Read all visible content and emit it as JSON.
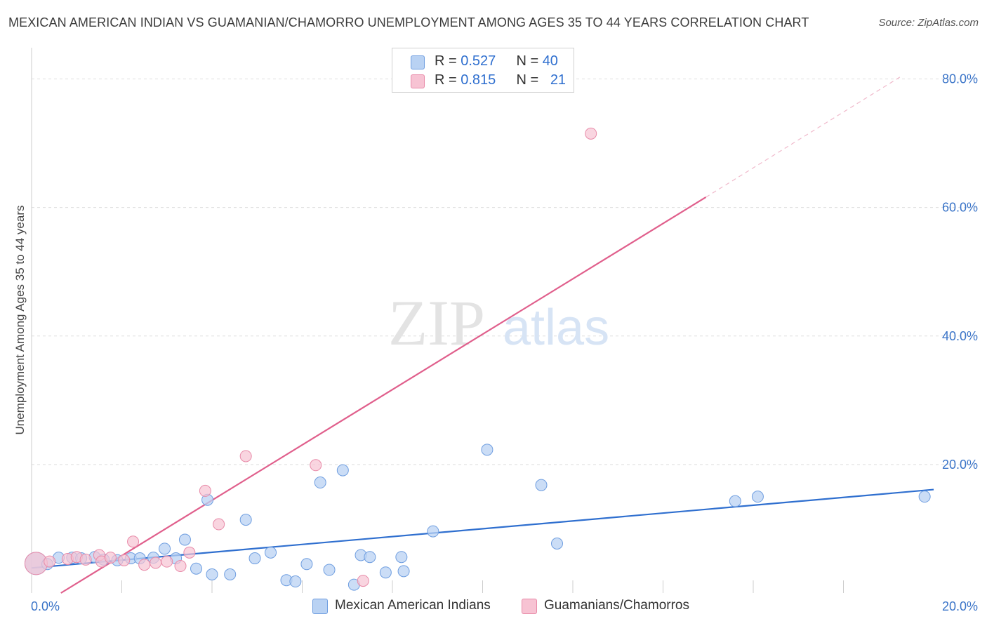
{
  "title": "MEXICAN AMERICAN INDIAN VS GUAMANIAN/CHAMORRO UNEMPLOYMENT AMONG AGES 35 TO 44 YEARS CORRELATION CHART",
  "source": "Source: ZipAtlas.com",
  "watermark": {
    "zip": "ZIP",
    "atlas": "atlas"
  },
  "legend": {
    "series1": {
      "r_label": "R = ",
      "r_value": "0.527",
      "n_label": "N = ",
      "n_value": "40"
    },
    "series2": {
      "r_label": "R = ",
      "r_value": "0.815",
      "n_label": "N = ",
      "n_value": "21"
    }
  },
  "bottom_legend": {
    "series1": "Mexican American Indians",
    "series2": "Guamanians/Chamorros"
  },
  "colors": {
    "blue_fill": "#b9d2f3",
    "blue_stroke": "#6f9ee0",
    "blue_line": "#2f6fcf",
    "pink_fill": "#f7c3d3",
    "pink_stroke": "#e88aa8",
    "pink_line": "#e05f8c",
    "grid": "#dddddd",
    "tick_text": "#3a74c8"
  },
  "chart_data": {
    "type": "scatter",
    "title": "MEXICAN AMERICAN INDIAN VS GUAMANIAN/CHAMORRO UNEMPLOYMENT AMONG AGES 35 TO 44 YEARS CORRELATION CHART",
    "xlabel": "",
    "ylabel": "Unemployment Among Ages 35 to 44 years",
    "xlim": [
      0,
      20
    ],
    "ylim": [
      0,
      80
    ],
    "x_tick_labels": [
      "0.0%",
      "20.0%"
    ],
    "y_ticks": [
      20,
      40,
      60,
      80
    ],
    "y_tick_labels": [
      "20.0%",
      "40.0%",
      "60.0%",
      "80.0%"
    ],
    "series": [
      {
        "name": "Mexican American Indians",
        "R": 0.527,
        "N": 40,
        "trend": {
          "x": [
            0,
            20
          ],
          "y": [
            3.9,
            16.1
          ]
        },
        "points": [
          {
            "x": 0.1,
            "y": 4.6,
            "big": true
          },
          {
            "x": 0.35,
            "y": 4.5
          },
          {
            "x": 0.6,
            "y": 5.5
          },
          {
            "x": 0.9,
            "y": 5.5
          },
          {
            "x": 1.1,
            "y": 5.4
          },
          {
            "x": 1.4,
            "y": 5.6
          },
          {
            "x": 1.6,
            "y": 5.2
          },
          {
            "x": 1.9,
            "y": 5.1
          },
          {
            "x": 2.2,
            "y": 5.4
          },
          {
            "x": 2.4,
            "y": 5.4
          },
          {
            "x": 2.7,
            "y": 5.5
          },
          {
            "x": 2.95,
            "y": 6.9
          },
          {
            "x": 3.2,
            "y": 5.4
          },
          {
            "x": 3.4,
            "y": 8.3
          },
          {
            "x": 3.65,
            "y": 3.8
          },
          {
            "x": 3.9,
            "y": 14.5
          },
          {
            "x": 4.0,
            "y": 2.9
          },
          {
            "x": 4.4,
            "y": 2.9
          },
          {
            "x": 4.75,
            "y": 11.4
          },
          {
            "x": 4.95,
            "y": 5.4
          },
          {
            "x": 5.3,
            "y": 6.3
          },
          {
            "x": 5.65,
            "y": 2.0
          },
          {
            "x": 5.85,
            "y": 1.8
          },
          {
            "x": 6.1,
            "y": 4.5
          },
          {
            "x": 6.4,
            "y": 17.2
          },
          {
            "x": 6.6,
            "y": 3.6
          },
          {
            "x": 6.9,
            "y": 19.1
          },
          {
            "x": 7.15,
            "y": 1.3
          },
          {
            "x": 7.3,
            "y": 5.9
          },
          {
            "x": 7.5,
            "y": 5.6
          },
          {
            "x": 7.85,
            "y": 3.2
          },
          {
            "x": 8.2,
            "y": 5.6
          },
          {
            "x": 8.25,
            "y": 3.4
          },
          {
            "x": 8.9,
            "y": 9.6
          },
          {
            "x": 10.1,
            "y": 22.3
          },
          {
            "x": 11.3,
            "y": 16.8
          },
          {
            "x": 11.65,
            "y": 7.7
          },
          {
            "x": 15.6,
            "y": 14.3
          },
          {
            "x": 16.1,
            "y": 15.0
          },
          {
            "x": 19.8,
            "y": 15.0
          }
        ]
      },
      {
        "name": "Guamanians/Chamorros",
        "R": 0.815,
        "N": 21,
        "trend": {
          "x": [
            0.65,
            14.95
          ],
          "y": [
            0.0,
            61.6
          ]
        },
        "trend_ext": {
          "x": [
            14.95,
            19.3
          ],
          "y": [
            61.6,
            80.5
          ]
        },
        "points": [
          {
            "x": 0.1,
            "y": 4.6,
            "big": true
          },
          {
            "x": 0.8,
            "y": 5.3
          },
          {
            "x": 1.0,
            "y": 5.6
          },
          {
            "x": 1.2,
            "y": 5.2
          },
          {
            "x": 1.5,
            "y": 5.9
          },
          {
            "x": 1.55,
            "y": 4.9
          },
          {
            "x": 1.75,
            "y": 5.5
          },
          {
            "x": 2.05,
            "y": 5.1
          },
          {
            "x": 2.25,
            "y": 8.0
          },
          {
            "x": 2.5,
            "y": 4.4
          },
          {
            "x": 2.75,
            "y": 4.7
          },
          {
            "x": 3.0,
            "y": 4.9
          },
          {
            "x": 3.3,
            "y": 4.2
          },
          {
            "x": 3.5,
            "y": 6.3
          },
          {
            "x": 3.85,
            "y": 15.9
          },
          {
            "x": 4.15,
            "y": 10.7
          },
          {
            "x": 4.75,
            "y": 21.3
          },
          {
            "x": 6.3,
            "y": 19.9
          },
          {
            "x": 7.35,
            "y": 1.9
          },
          {
            "x": 12.4,
            "y": 71.5
          },
          {
            "x": 0.4,
            "y": 4.9
          }
        ]
      }
    ]
  }
}
